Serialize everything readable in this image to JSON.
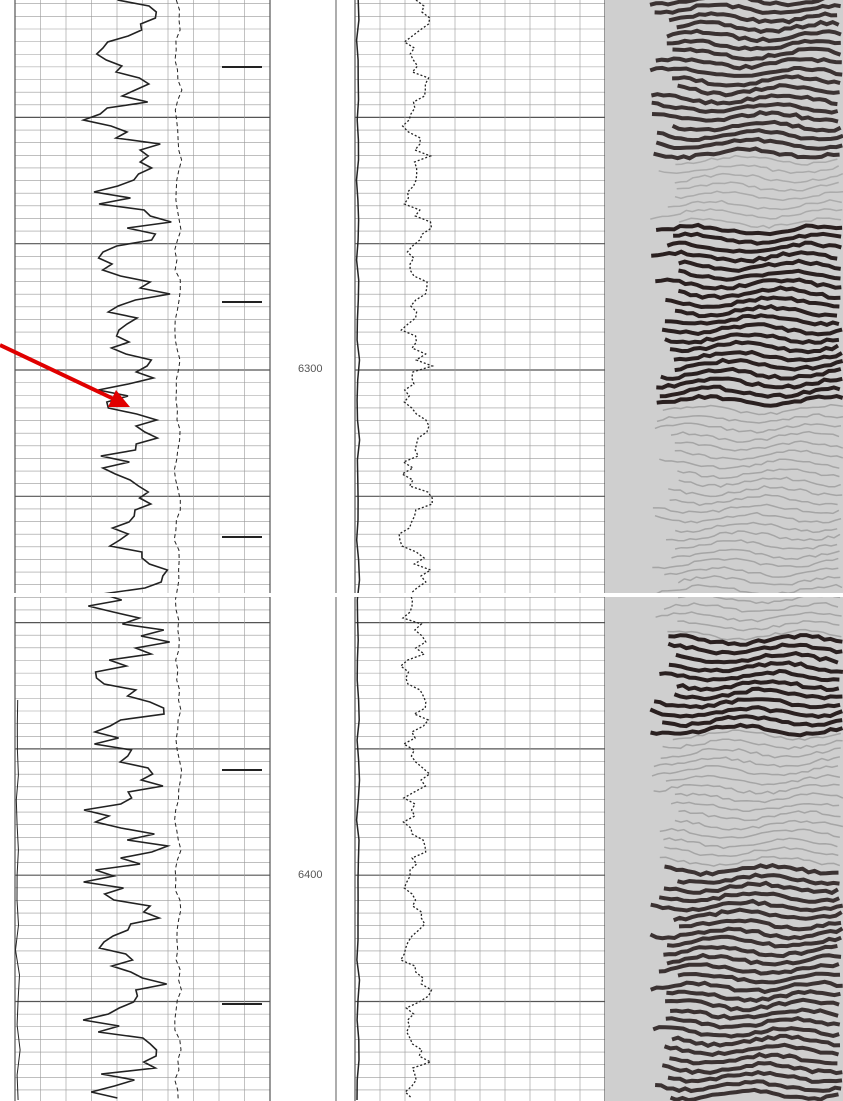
{
  "depth_track": {
    "labels": [
      "6300",
      "6400"
    ]
  }
}
